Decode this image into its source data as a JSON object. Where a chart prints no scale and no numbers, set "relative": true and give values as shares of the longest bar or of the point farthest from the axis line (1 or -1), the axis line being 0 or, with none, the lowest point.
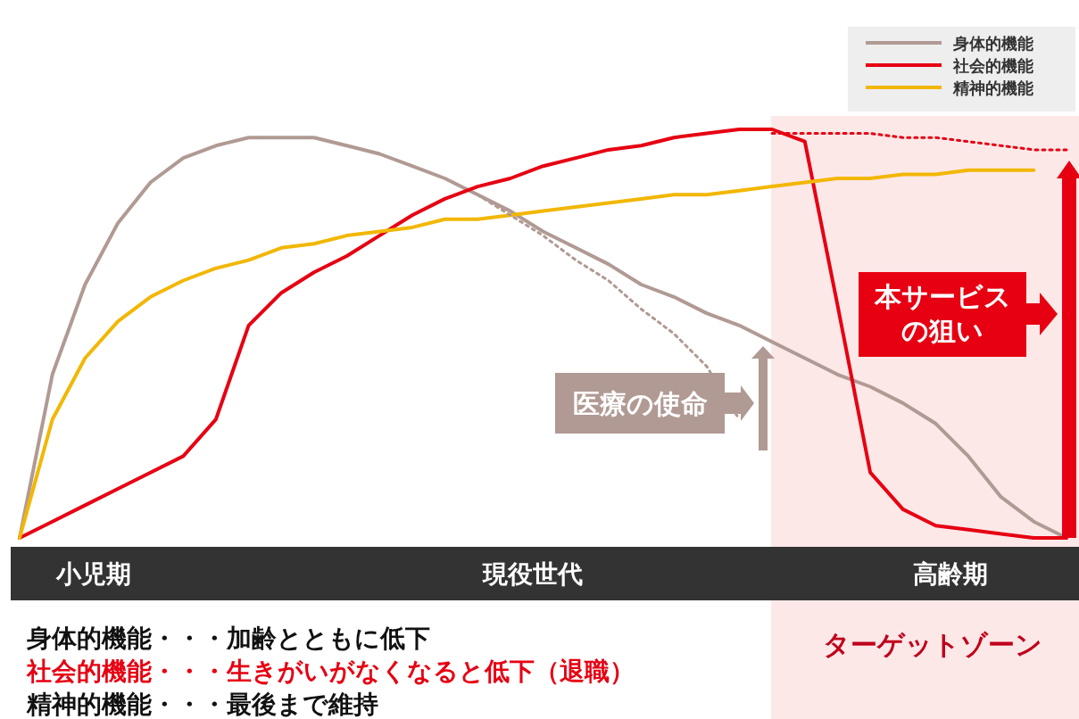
{
  "chart_data": {
    "type": "line",
    "relative": true,
    "legend": "top right",
    "categories": [
      null,
      null,
      null,
      null,
      null,
      null,
      null,
      null,
      null,
      null,
      null,
      null,
      null,
      null,
      null,
      null,
      null,
      null,
      null,
      null,
      null,
      null,
      null,
      null,
      null,
      null,
      null,
      null,
      null,
      null,
      null,
      null,
      null
    ],
    "series": [
      {
        "name": "身体的機能",
        "color": "#b09a93",
        "values": [
          0,
          0.4,
          0.62,
          0.77,
          0.87,
          0.93,
          0.96,
          0.98,
          0.98,
          0.98,
          0.96,
          0.94,
          0.91,
          0.88,
          0.84,
          0.8,
          0.75,
          0.71,
          0.67,
          0.62,
          0.59,
          0.55,
          0.52,
          0.48,
          0.44,
          0.4,
          0.37,
          0.33,
          0.28,
          0.2,
          0.1,
          0.04,
          0
        ]
      },
      {
        "name": "社会的機能",
        "color": "#e60012",
        "values": [
          0,
          0.04,
          0.08,
          0.12,
          0.16,
          0.2,
          0.29,
          0.52,
          0.6,
          0.65,
          0.69,
          0.74,
          0.79,
          0.83,
          0.86,
          0.88,
          0.91,
          0.93,
          0.95,
          0.96,
          0.98,
          0.99,
          1.0,
          1.0,
          0.97,
          0.57,
          0.16,
          0.07,
          0.03,
          0.02,
          0.01,
          0,
          0
        ]
      },
      {
        "name": "精神的機能",
        "color": "#f2b705",
        "values": [
          0,
          0.29,
          0.44,
          0.53,
          0.59,
          0.63,
          0.66,
          0.68,
          0.71,
          0.72,
          0.74,
          0.75,
          0.76,
          0.78,
          0.78,
          0.79,
          0.8,
          0.81,
          0.82,
          0.83,
          0.84,
          0.84,
          0.85,
          0.86,
          0.87,
          0.88,
          0.88,
          0.89,
          0.89,
          0.9,
          0.9,
          0.9,
          null
        ]
      },
      {
        "color": "#b09a93",
        "line_style": "dotted",
        "values": [
          null,
          null,
          null,
          null,
          null,
          null,
          null,
          null,
          null,
          null,
          null,
          null,
          null,
          null,
          0.84,
          0.79,
          0.74,
          0.68,
          0.63,
          0.56,
          0.5,
          0.42,
          0.29,
          null,
          null,
          null,
          null,
          null,
          null,
          null,
          null,
          null,
          null
        ]
      },
      {
        "color": "#e60012",
        "line_style": "dotted",
        "values": [
          null,
          null,
          null,
          null,
          null,
          null,
          null,
          null,
          null,
          null,
          null,
          null,
          null,
          null,
          null,
          null,
          null,
          null,
          null,
          null,
          null,
          null,
          null,
          0.99,
          0.99,
          0.99,
          0.99,
          0.98,
          0.98,
          0.97,
          0.96,
          0.95,
          0.95
        ]
      }
    ],
    "annotations": [
      "小児期",
      "現役世代",
      "高齢期",
      "医療の使命",
      "本サービスの狙い",
      "ターゲットゾーン",
      "身体的機能・・・加齢とともに低下",
      "社会的機能・・・生きがいがなくなると低下（退職）",
      "精神的機能・・・最後まで維持"
    ]
  }
}
